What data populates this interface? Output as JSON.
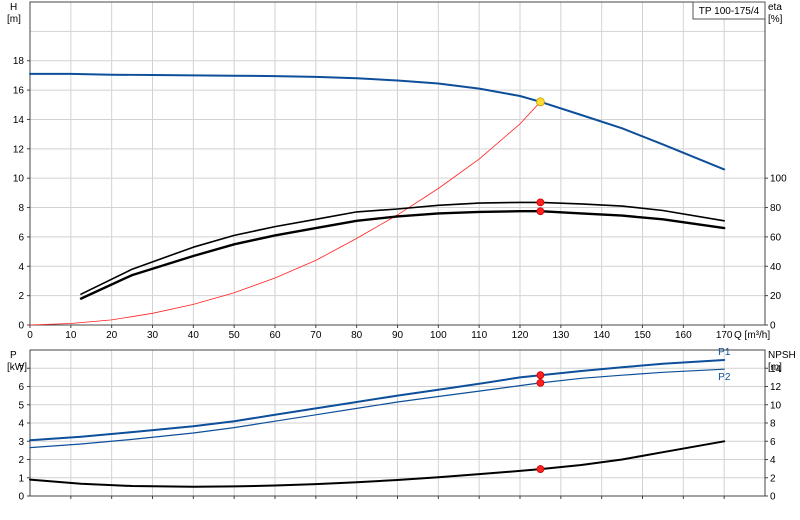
{
  "chart_data": [
    {
      "type": "line",
      "panel": "upper",
      "model_label": "TP 100-175/4",
      "x_axis": {
        "label": "Q [m³/h]",
        "range": [
          0,
          180
        ],
        "ticks": [
          "0",
          "10",
          "20",
          "30",
          "40",
          "50",
          "60",
          "70",
          "80",
          "90",
          "100",
          "110",
          "120",
          "130",
          "140",
          "150",
          "160",
          "170"
        ]
      },
      "y_left": {
        "label_line1": "H",
        "label_line2": "[m]",
        "range": [
          0,
          22
        ],
        "ticks": [
          "0",
          "2",
          "4",
          "6",
          "8",
          "10",
          "12",
          "14",
          "16",
          "18"
        ]
      },
      "y_right": {
        "label_line1": "eta",
        "label_line2": "[%]",
        "range": [
          0,
          220
        ],
        "ticks": [
          "0",
          "20",
          "40",
          "60",
          "80",
          "100"
        ]
      },
      "grid": true,
      "series": [
        {
          "role": "head",
          "axis": "left",
          "color": "#0d4f9a",
          "x": [
            0,
            10,
            20,
            30,
            40,
            50,
            60,
            70,
            80,
            90,
            100,
            110,
            120,
            125,
            135,
            145,
            155,
            170
          ],
          "y": [
            17.1,
            17.1,
            17.05,
            17.03,
            17.0,
            16.98,
            16.95,
            16.9,
            16.8,
            16.65,
            16.45,
            16.1,
            15.6,
            15.2,
            14.3,
            13.4,
            12.3,
            10.6
          ]
        },
        {
          "role": "system",
          "axis": "left",
          "color": "#ff2020",
          "x": [
            0,
            10,
            20,
            30,
            40,
            50,
            60,
            70,
            80,
            90,
            100,
            110,
            120,
            125
          ],
          "y": [
            0,
            0.1,
            0.35,
            0.8,
            1.4,
            2.2,
            3.2,
            4.4,
            5.9,
            7.5,
            9.3,
            11.3,
            13.7,
            15.2
          ]
        },
        {
          "role": "eta1",
          "axis": "right",
          "color": "#000000",
          "x": [
            12.5,
            25,
            40,
            50,
            60,
            70,
            80,
            90,
            100,
            110,
            120,
            125,
            135,
            145,
            155,
            170
          ],
          "y": [
            21,
            38,
            53,
            61,
            67,
            72,
            77,
            79,
            81.5,
            83,
            83.5,
            83.5,
            82.5,
            81,
            78,
            71
          ]
        },
        {
          "role": "eta2",
          "axis": "right",
          "color": "#000000",
          "x": [
            12.5,
            25,
            40,
            50,
            60,
            70,
            80,
            90,
            100,
            110,
            120,
            125,
            135,
            145,
            155,
            170
          ],
          "y": [
            18,
            34,
            47,
            55,
            61,
            66,
            71,
            74,
            76,
            77,
            77.5,
            77.5,
            76,
            74.5,
            72,
            66
          ]
        }
      ],
      "markers": [
        {
          "x": 125,
          "y": 15.2,
          "axis": "left",
          "color": "#ffdd33"
        },
        {
          "x": 125,
          "y": 83.5,
          "axis": "right",
          "color": "#ff2020"
        },
        {
          "x": 125,
          "y": 77.5,
          "axis": "right",
          "color": "#ff2020"
        }
      ]
    },
    {
      "type": "line",
      "panel": "lower",
      "x_axis": {
        "range": [
          0,
          180
        ]
      },
      "y_left": {
        "label_line1": "P",
        "label_line2": "[kW]",
        "range": [
          0,
          8
        ],
        "ticks": [
          "0",
          "1",
          "2",
          "3",
          "4",
          "5",
          "6",
          "7"
        ]
      },
      "y_right": {
        "label_line1": "NPSH",
        "label_line2": "[m]",
        "range": [
          0,
          16
        ],
        "ticks": [
          "0",
          "2",
          "4",
          "6",
          "8",
          "10",
          "12",
          "14"
        ]
      },
      "grid": true,
      "series": [
        {
          "name": "P1",
          "axis": "left",
          "color": "#0d4f9a",
          "x": [
            0,
            12.5,
            25,
            40,
            50,
            60,
            70,
            80,
            90,
            100,
            110,
            120,
            125,
            135,
            145,
            155,
            170
          ],
          "y": [
            3.05,
            3.25,
            3.5,
            3.82,
            4.1,
            4.45,
            4.8,
            5.15,
            5.5,
            5.82,
            6.15,
            6.5,
            6.62,
            6.85,
            7.05,
            7.25,
            7.45
          ]
        },
        {
          "name": "P2",
          "axis": "left",
          "color": "#0d4f9a",
          "x": [
            0,
            12.5,
            25,
            40,
            50,
            60,
            70,
            80,
            90,
            100,
            110,
            120,
            125,
            135,
            145,
            155,
            170
          ],
          "y": [
            2.65,
            2.85,
            3.1,
            3.45,
            3.75,
            4.1,
            4.45,
            4.8,
            5.15,
            5.45,
            5.75,
            6.05,
            6.2,
            6.45,
            6.62,
            6.78,
            6.95
          ]
        },
        {
          "role": "npsh",
          "axis": "right",
          "color": "#000000",
          "x": [
            0,
            12.5,
            25,
            40,
            50,
            60,
            70,
            80,
            90,
            100,
            110,
            120,
            125,
            135,
            145,
            155,
            170
          ],
          "y": [
            1.8,
            1.35,
            1.1,
            1.02,
            1.05,
            1.15,
            1.3,
            1.5,
            1.75,
            2.05,
            2.4,
            2.75,
            2.95,
            3.4,
            4.0,
            4.8,
            6.0
          ]
        }
      ],
      "markers": [
        {
          "x": 125,
          "y": 6.62,
          "axis": "left",
          "color": "#ff2020"
        },
        {
          "x": 125,
          "y": 6.2,
          "axis": "left",
          "color": "#ff2020"
        },
        {
          "x": 125,
          "y": 2.95,
          "axis": "right",
          "color": "#ff2020"
        }
      ]
    }
  ]
}
